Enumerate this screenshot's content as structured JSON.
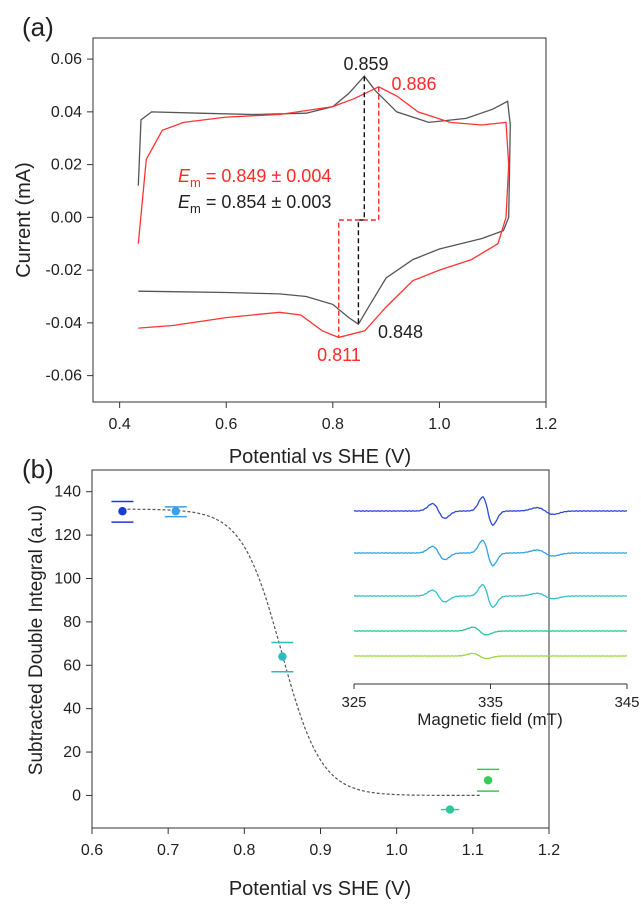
{
  "chart_data": [
    {
      "panel": "(a)",
      "type": "line",
      "xlabel": "Potential vs SHE (V)",
      "ylabel": "Current (mA)",
      "xlim": [
        0.35,
        1.2
      ],
      "ylim": [
        -0.07,
        0.068
      ],
      "xticks": [
        "0.4",
        "0.6",
        "0.8",
        "1.0",
        "1.2"
      ],
      "yticks": [
        "-0.06",
        "-0.04",
        "-0.02",
        "0.00",
        "0.02",
        "0.04",
        "0.06"
      ],
      "series": [
        {
          "color": "#555555",
          "points": [
            [
              0.435,
              0.012
            ],
            [
              0.44,
              0.037
            ],
            [
              0.46,
              0.04
            ],
            [
              0.55,
              0.0395
            ],
            [
              0.65,
              0.039
            ],
            [
              0.75,
              0.0395
            ],
            [
              0.8,
              0.042
            ],
            [
              0.83,
              0.047
            ],
            [
              0.859,
              0.0535
            ],
            [
              0.88,
              0.048
            ],
            [
              0.92,
              0.04
            ],
            [
              0.98,
              0.036
            ],
            [
              1.05,
              0.0375
            ],
            [
              1.1,
              0.041
            ],
            [
              1.128,
              0.044
            ],
            [
              1.133,
              0.035
            ],
            [
              1.13,
              0.0
            ],
            [
              1.12,
              -0.005
            ],
            [
              1.08,
              -0.008
            ],
            [
              1.0,
              -0.012
            ],
            [
              0.95,
              -0.016
            ],
            [
              0.9,
              -0.023
            ],
            [
              0.87,
              -0.033
            ],
            [
              0.848,
              -0.0405
            ],
            [
              0.83,
              -0.038
            ],
            [
              0.8,
              -0.033
            ],
            [
              0.75,
              -0.03
            ],
            [
              0.7,
              -0.029
            ],
            [
              0.6,
              -0.0285
            ],
            [
              0.5,
              -0.0282
            ],
            [
              0.435,
              -0.028
            ]
          ]
        },
        {
          "color": "#ff3333",
          "points": [
            [
              0.435,
              -0.01
            ],
            [
              0.45,
              0.022
            ],
            [
              0.48,
              0.033
            ],
            [
              0.52,
              0.036
            ],
            [
              0.6,
              0.038
            ],
            [
              0.7,
              0.039
            ],
            [
              0.8,
              0.042
            ],
            [
              0.84,
              0.045
            ],
            [
              0.886,
              0.0495
            ],
            [
              0.92,
              0.046
            ],
            [
              0.96,
              0.04
            ],
            [
              1.02,
              0.036
            ],
            [
              1.08,
              0.035
            ],
            [
              1.125,
              0.036
            ],
            [
              1.13,
              0.02
            ],
            [
              1.125,
              0.0
            ],
            [
              1.11,
              -0.01
            ],
            [
              1.06,
              -0.016
            ],
            [
              1.0,
              -0.02
            ],
            [
              0.95,
              -0.024
            ],
            [
              0.9,
              -0.034
            ],
            [
              0.86,
              -0.043
            ],
            [
              0.811,
              -0.0455
            ],
            [
              0.78,
              -0.043
            ],
            [
              0.74,
              -0.037
            ],
            [
              0.7,
              -0.036
            ],
            [
              0.6,
              -0.038
            ],
            [
              0.5,
              -0.041
            ],
            [
              0.435,
              -0.042
            ]
          ]
        }
      ],
      "annotations": {
        "peak_ox_black": "0.859",
        "peak_ox_red": "0.886",
        "peak_red_black": "0.848",
        "peak_red_red": "0.811",
        "em_red_symbol": "E",
        "em_red_sub": "m",
        "em_red_value": " = 0.849 ± 0.004",
        "em_black_symbol": "E",
        "em_black_sub": "m",
        "em_black_value": " = 0.854 ± 0.003"
      }
    },
    {
      "panel": "(b)",
      "type": "scatter",
      "xlabel": "Potential vs SHE (V)",
      "ylabel": "Subtracted Double Integral (a.u)",
      "xlim": [
        0.6,
        1.2
      ],
      "ylim": [
        -15,
        150
      ],
      "xticks": [
        "0.6",
        "0.7",
        "0.8",
        "0.9",
        "1.0",
        "1.1",
        "1.2"
      ],
      "yticks": [
        "0",
        "20",
        "40",
        "60",
        "80",
        "100",
        "120",
        "140"
      ],
      "points": [
        {
          "x": 0.64,
          "y": 131,
          "ylo": 126,
          "yhi": 135.5,
          "xerr": 0,
          "color": "#1c3ad8"
        },
        {
          "x": 0.71,
          "y": 131,
          "ylo": 128.5,
          "yhi": 133,
          "xerr": 0.005,
          "color": "#3aa0e8"
        },
        {
          "x": 0.85,
          "y": 64,
          "ylo": 57,
          "yhi": 70.5,
          "xerr": 0,
          "color": "#2bbcbf"
        },
        {
          "x": 1.07,
          "y": -6.5,
          "ylo": -6.5,
          "yhi": -6.5,
          "xerr": 0.012,
          "color": "#2ec79a"
        },
        {
          "x": 1.12,
          "y": 7,
          "ylo": 2,
          "yhi": 12,
          "xerr": 0,
          "color": "#33cc55"
        }
      ],
      "fit": {
        "type": "sigmoid",
        "top": 132,
        "bottom": 0,
        "x0": 0.849,
        "width": 0.026,
        "color": "#555555"
      }
    },
    {
      "panel": "(b) inset",
      "type": "line",
      "xlabel": "Magnetic field (mT)",
      "xlim": [
        325,
        345
      ],
      "xticks": [
        "325",
        "335",
        "345"
      ],
      "series": [
        {
          "color": "#2d4ad8",
          "amp": 1.0
        },
        {
          "color": "#33a2e6",
          "amp": 0.9
        },
        {
          "color": "#30c3c9",
          "amp": 0.8
        },
        {
          "color": "#2cc49c",
          "amp": 0.12
        },
        {
          "color": "#9dd640",
          "amp": 0.08
        }
      ]
    }
  ]
}
